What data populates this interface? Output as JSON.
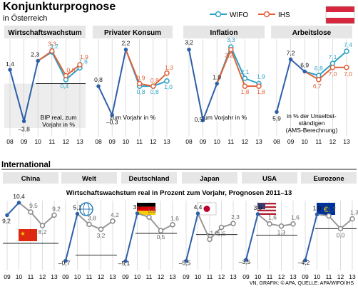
{
  "header": {
    "title": "Konjunkturprognose",
    "subtitle": "in Österreich",
    "legend": {
      "wifo": "WIFO",
      "ihs": "IHS"
    },
    "colors": {
      "wifo": "#2aa3c7",
      "ihs": "#e0623a",
      "base": "#2d5fa8",
      "band": "#e6e6e6",
      "grid": "#cfcfcf"
    }
  },
  "international_label": "International",
  "international_subtitle": "Wirtschaftswachstum real in Prozent zum Vorjahr, Prognosen 2011–13",
  "source": "VN, GRAFIK: © APA, QUELLE: APA/WIFO/IHS",
  "chart_data": [
    {
      "id": "wachstum",
      "type": "line",
      "title": "Wirtschaftswachstum",
      "note": "BIP real, zum Vorjahr in %",
      "x": [
        "08",
        "09",
        "10",
        "11",
        "12",
        "13"
      ],
      "ylim": [
        -4.5,
        4.5
      ],
      "series": [
        {
          "name": "WIFO",
          "values": [
            1.4,
            -3.8,
            2.3,
            3.2,
            0.4,
            1.6
          ],
          "labels": [
            "1,4",
            "–3,8",
            "2,3",
            "3,2",
            "0,4",
            "1,6"
          ]
        },
        {
          "name": "IHS",
          "values": [
            null,
            null,
            null,
            3.3,
            0.8,
            1.9
          ],
          "labels": [
            "",
            "",
            "",
            "3,3",
            "0,8",
            "1,9"
          ]
        }
      ]
    },
    {
      "id": "konsum",
      "type": "line",
      "title": "Privater Konsum",
      "note": "zum Vorjahr in %",
      "x": [
        "08",
        "09",
        "10",
        "11",
        "12",
        "13"
      ],
      "ylim": [
        -0.8,
        2.6
      ],
      "series": [
        {
          "name": "WIFO",
          "values": [
            0.8,
            -0.3,
            2.2,
            0.8,
            0.8,
            1.0
          ],
          "labels": [
            "0,8",
            "–0,3",
            "2,2",
            "0,8",
            "0,8",
            "1,0"
          ]
        },
        {
          "name": "IHS",
          "values": [
            null,
            null,
            null,
            0.9,
            0.8,
            1.3
          ],
          "labels": [
            "",
            "",
            "",
            "0,9",
            "0,8",
            "1,3"
          ]
        }
      ]
    },
    {
      "id": "inflation",
      "type": "line",
      "title": "Inflation",
      "note": "zum Vorjahr in %",
      "x": [
        "08",
        "09",
        "10",
        "11",
        "12",
        "13"
      ],
      "ylim": [
        0.2,
        3.6
      ],
      "series": [
        {
          "name": "WIFO",
          "values": [
            3.2,
            0.5,
            1.9,
            3.3,
            2.1,
            1.9
          ],
          "labels": [
            "3,2",
            "0,5",
            "1,9",
            "3,3",
            "2,1",
            "1,9"
          ]
        },
        {
          "name": "IHS",
          "values": [
            null,
            null,
            null,
            3.2,
            1.8,
            1.8
          ],
          "labels": [
            "",
            "",
            "",
            "3,2",
            "1,8",
            "1,8"
          ]
        }
      ]
    },
    {
      "id": "arbeitslose",
      "type": "line",
      "title": "Arbeitslose",
      "note": "in % der Unselbst-ständigen (AMS-Berechnung)",
      "x": [
        "08",
        "09",
        "10",
        "11",
        "12",
        "13"
      ],
      "ylim": [
        5.5,
        7.7
      ],
      "series": [
        {
          "name": "WIFO",
          "values": [
            5.9,
            7.2,
            6.9,
            6.8,
            7.1,
            7.4
          ],
          "labels": [
            "5,9",
            "7,2",
            "6,9",
            "6,8",
            "7,1",
            "7,4"
          ]
        },
        {
          "name": "IHS",
          "values": [
            null,
            null,
            null,
            6.7,
            7.0,
            7.0
          ],
          "labels": [
            "",
            "",
            "",
            "6,7",
            "7,0",
            "7,0"
          ]
        }
      ]
    },
    {
      "id": "china",
      "type": "line",
      "title": "China",
      "flag": "china",
      "x": [
        "09",
        "10",
        "11",
        "12",
        "13"
      ],
      "ylim": [
        8.0,
        11.0
      ],
      "series": [
        {
          "name": "WIFO",
          "values": [
            9.2,
            10.4,
            9.5,
            8.2,
            9.2
          ],
          "labels": [
            "9,2",
            "10,4",
            "9,5",
            "8,2",
            "9,2"
          ]
        }
      ]
    },
    {
      "id": "welt",
      "type": "line",
      "title": "Welt",
      "flag": "globe",
      "x": [
        "09",
        "10",
        "11",
        "12",
        "13"
      ],
      "ylim": [
        -1.0,
        5.5
      ],
      "series": [
        {
          "name": "WIFO",
          "values": [
            -0.7,
            5.1,
            3.8,
            3.2,
            4.2
          ],
          "labels": [
            "–0,7",
            "5,1",
            "3,8",
            "3,2",
            "4,2"
          ]
        }
      ]
    },
    {
      "id": "deutschland",
      "type": "line",
      "title": "Deutschland",
      "flag": "germany",
      "x": [
        "09",
        "10",
        "11",
        "12",
        "13"
      ],
      "ylim": [
        -5.5,
        4.2
      ],
      "series": [
        {
          "name": "WIFO",
          "values": [
            -5.1,
            3.7,
            3.0,
            0.5,
            1.6
          ],
          "labels": [
            "–5,1",
            "3,7",
            "3,0",
            "0,5",
            "1,6"
          ]
        }
      ]
    },
    {
      "id": "japan",
      "type": "line",
      "title": "Japan",
      "flag": "japan",
      "x": [
        "09",
        "10",
        "11",
        "12",
        "13"
      ],
      "ylim": [
        -6.0,
        5.0
      ],
      "series": [
        {
          "name": "WIFO",
          "values": [
            -5.5,
            4.4,
            -1.0,
            1.5,
            2.3
          ],
          "labels": [
            "–5,5",
            "4,4",
            "–1,0",
            "1,5",
            "2,3"
          ]
        }
      ]
    },
    {
      "id": "usa",
      "type": "line",
      "title": "USA",
      "flag": "usa",
      "x": [
        "09",
        "10",
        "11",
        "12",
        "13"
      ],
      "ylim": [
        -4.0,
        3.5
      ],
      "series": [
        {
          "name": "WIFO",
          "values": [
            -3.5,
            3.0,
            1.6,
            1.3,
            1.6
          ],
          "labels": [
            "–3,5",
            "3,0",
            "1,6",
            "1,3",
            "1,6"
          ]
        }
      ]
    },
    {
      "id": "eurozone",
      "type": "line",
      "title": "Eurozone",
      "flag": "eu",
      "x": [
        "09",
        "10",
        "11",
        "12",
        "13"
      ],
      "ylim": [
        -4.6,
        2.4
      ],
      "series": [
        {
          "name": "WIFO",
          "values": [
            -4.2,
            1.9,
            1.7,
            0.0,
            1.3
          ],
          "labels": [
            "–4,2",
            "1,9",
            "1,7",
            "0,0",
            "1,3"
          ]
        }
      ]
    }
  ]
}
